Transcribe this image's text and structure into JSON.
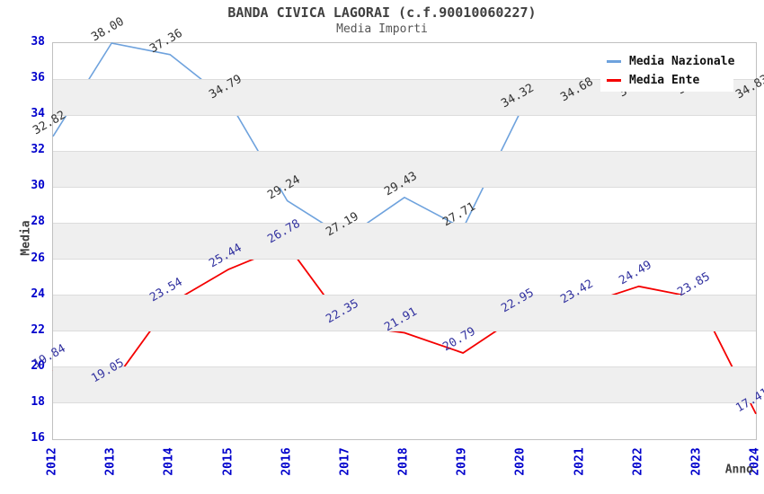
{
  "chart_data": {
    "type": "line",
    "title": "BANDA CIVICA LAGORAI (c.f.90010060227)",
    "subtitle": "Media Importi",
    "xlabel": "Anno",
    "ylabel": "Media",
    "x": [
      2012,
      2013,
      2014,
      2015,
      2016,
      2017,
      2018,
      2019,
      2020,
      2021,
      2022,
      2023,
      2024
    ],
    "ylim": [
      16,
      38
    ],
    "ytick_step": 2,
    "grid": "horizontal",
    "alternating_bands": true,
    "legend_position": "top-right",
    "series": [
      {
        "name": "Media Nazionale",
        "color": "#6ea2dd",
        "label_color": "#333333",
        "values": [
          32.82,
          38.0,
          37.36,
          34.79,
          29.24,
          27.19,
          29.43,
          27.71,
          34.32,
          34.68,
          34.91,
          35.05,
          34.83
        ]
      },
      {
        "name": "Media Ente",
        "color": "#f40000",
        "label_color": "#3333a0",
        "values": [
          19.84,
          19.05,
          23.54,
          25.44,
          26.78,
          22.35,
          21.91,
          20.79,
          22.95,
          23.42,
          24.49,
          23.85,
          17.41
        ]
      }
    ],
    "colors": {
      "tick_text": "#0000cc",
      "title_text": "#404040",
      "subtitle_text": "#555555",
      "band_fill": "#efefef",
      "gridline": "#dcdcdc",
      "plot_border": "#c0c0c0",
      "legend_text": "#111111"
    }
  }
}
